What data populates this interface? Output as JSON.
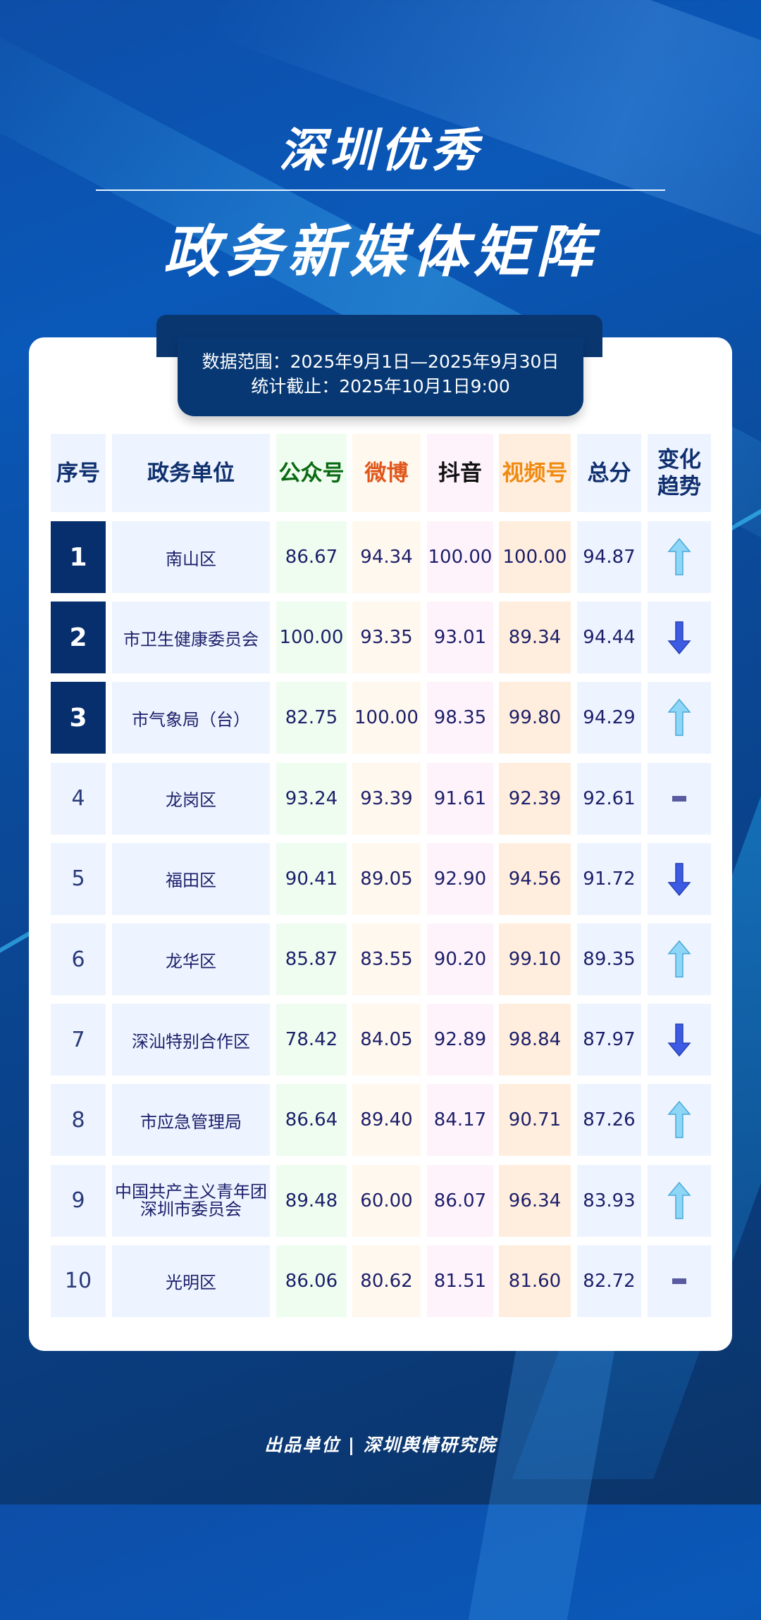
{
  "title_line1": "深圳优秀",
  "title_line2": "政务新媒体矩阵",
  "date_range": "数据范围：2025年9月1日—2025年9月30日",
  "cutoff": "统计截止：2025年10月1日9:00",
  "headers": [
    "序号",
    "政务单位",
    "公众号",
    "微博",
    "抖音",
    "视频号",
    "总分",
    "变化趋势"
  ],
  "header_colors": {
    "公众号": "#0a6a12",
    "微博": "#e0561a",
    "抖音": "#111111",
    "视频号": "#f08a10"
  },
  "rows": [
    {
      "rank": "1",
      "unit": "南山区",
      "gzh": "86.67",
      "wb": "94.34",
      "dy": "100.00",
      "sph": "100.00",
      "total": "94.87",
      "trend": "up"
    },
    {
      "rank": "2",
      "unit": "市卫生健康委员会",
      "gzh": "100.00",
      "wb": "93.35",
      "dy": "93.01",
      "sph": "89.34",
      "total": "94.44",
      "trend": "down"
    },
    {
      "rank": "3",
      "unit": "市气象局（台）",
      "gzh": "82.75",
      "wb": "100.00",
      "dy": "98.35",
      "sph": "99.80",
      "total": "94.29",
      "trend": "up"
    },
    {
      "rank": "4",
      "unit": "龙岗区",
      "gzh": "93.24",
      "wb": "93.39",
      "dy": "91.61",
      "sph": "92.39",
      "total": "92.61",
      "trend": "flat"
    },
    {
      "rank": "5",
      "unit": "福田区",
      "gzh": "90.41",
      "wb": "89.05",
      "dy": "92.90",
      "sph": "94.56",
      "total": "91.72",
      "trend": "down"
    },
    {
      "rank": "6",
      "unit": "龙华区",
      "gzh": "85.87",
      "wb": "83.55",
      "dy": "90.20",
      "sph": "99.10",
      "total": "89.35",
      "trend": "up"
    },
    {
      "rank": "7",
      "unit": "深汕特别合作区",
      "gzh": "78.42",
      "wb": "84.05",
      "dy": "92.89",
      "sph": "98.84",
      "total": "87.97",
      "trend": "down"
    },
    {
      "rank": "8",
      "unit": "市应急管理局",
      "gzh": "86.64",
      "wb": "89.40",
      "dy": "84.17",
      "sph": "90.71",
      "total": "87.26",
      "trend": "up"
    },
    {
      "rank": "9",
      "unit": "中国共产主义青年团深圳市委员会",
      "gzh": "89.48",
      "wb": "60.00",
      "dy": "86.07",
      "sph": "96.34",
      "total": "83.93",
      "trend": "up"
    },
    {
      "rank": "10",
      "unit": "光明区",
      "gzh": "86.06",
      "wb": "80.62",
      "dy": "81.51",
      "sph": "81.60",
      "total": "82.72",
      "trend": "flat"
    }
  ],
  "footer": "出品单位 | 深圳舆情研究院"
}
